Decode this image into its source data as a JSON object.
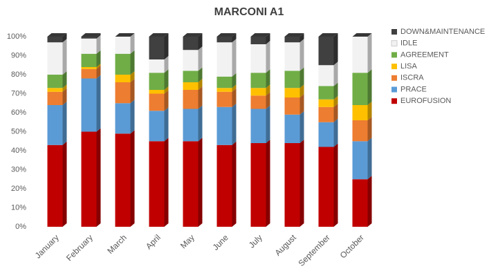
{
  "chart_data": {
    "type": "stacked_bar",
    "title": "MARCONI A1",
    "categories": [
      "January",
      "February",
      "March",
      "April",
      "May",
      "June",
      "July",
      "August",
      "September",
      "October"
    ],
    "series": [
      {
        "name": "EUROFUSION",
        "color": "#c00000",
        "values": [
          43,
          50,
          49,
          45,
          45,
          43,
          44,
          44,
          42,
          25
        ]
      },
      {
        "name": "PRACE",
        "color": "#5b9bd5",
        "values": [
          21,
          28,
          16,
          16,
          17,
          20,
          18,
          15,
          13,
          20
        ]
      },
      {
        "name": "ISCRA",
        "color": "#ed7d31",
        "values": [
          7,
          5,
          11,
          9,
          10,
          8,
          7,
          9,
          8,
          11
        ]
      },
      {
        "name": "LISA",
        "color": "#ffc000",
        "values": [
          2,
          1,
          4,
          2,
          4,
          2,
          4,
          5,
          4,
          8
        ]
      },
      {
        "name": "AGREEMENT",
        "color": "#70ad47",
        "values": [
          7,
          7,
          11,
          9,
          6,
          6,
          8,
          9,
          7,
          17
        ]
      },
      {
        "name": "IDLE",
        "color": "#f2f2f2",
        "values": [
          17,
          8,
          9,
          7,
          11,
          18,
          15,
          15,
          11,
          19
        ]
      },
      {
        "name": "DOWN&MAINTENANCE",
        "color": "#404040",
        "values": [
          3,
          1,
          0,
          12,
          7,
          3,
          4,
          3,
          15,
          0
        ]
      }
    ],
    "ylim": [
      0,
      100
    ],
    "yticks": [
      {
        "value": 0,
        "label": "0%"
      },
      {
        "value": 10,
        "label": "10%"
      },
      {
        "value": 20,
        "label": "20%"
      },
      {
        "value": 30,
        "label": "30%"
      },
      {
        "value": 40,
        "label": "40%"
      },
      {
        "value": 50,
        "label": "50%"
      },
      {
        "value": 60,
        "label": "60%"
      },
      {
        "value": 70,
        "label": "70%"
      },
      {
        "value": 80,
        "label": "80%"
      },
      {
        "value": 90,
        "label": "90%"
      },
      {
        "value": 100,
        "label": "100%"
      }
    ],
    "grid": false,
    "legend": "right"
  }
}
